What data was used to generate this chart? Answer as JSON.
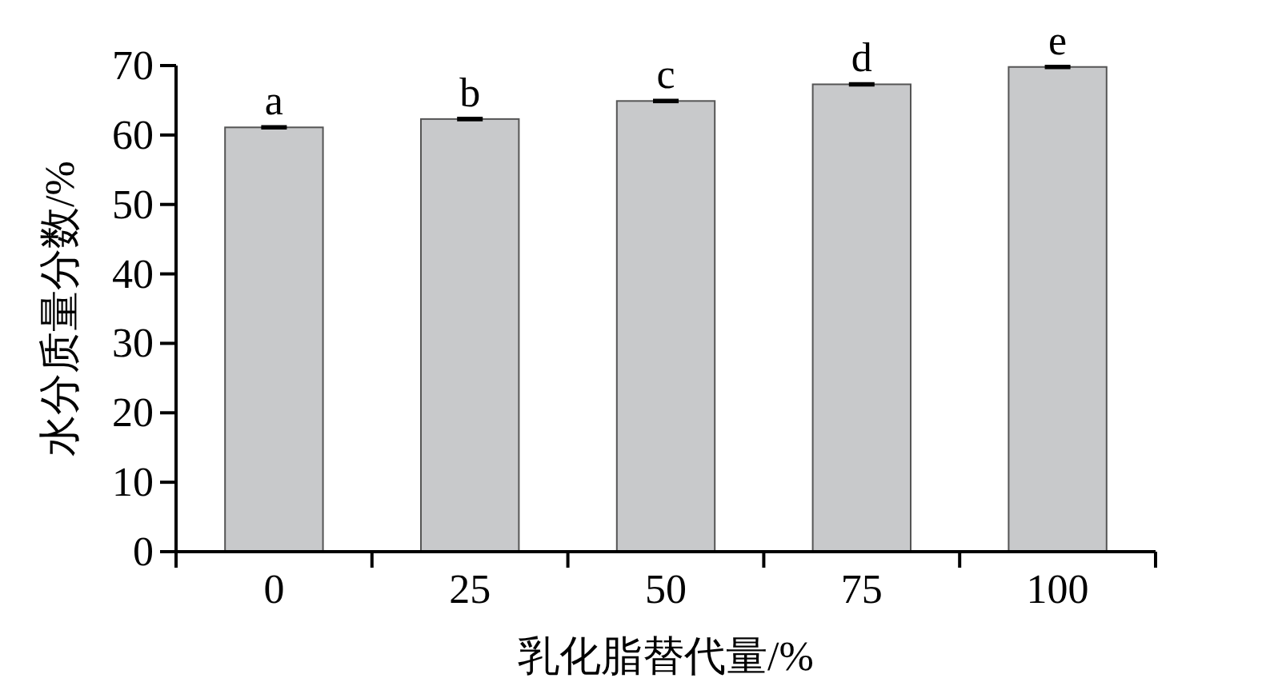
{
  "chart_data": {
    "type": "bar",
    "xlabel": "乳化脂替代量/%",
    "ylabel": "水分质量分数/%",
    "categories": [
      "0",
      "25",
      "50",
      "75",
      "100"
    ],
    "values": [
      61.1,
      62.3,
      64.9,
      67.3,
      69.8
    ],
    "errors": [
      0.15,
      0.15,
      0.15,
      0.15,
      0.15
    ],
    "color": "#c8c9cb",
    "ylim": [
      0,
      70
    ],
    "yticks": [
      0,
      10,
      20,
      30,
      40,
      50,
      60,
      70
    ],
    "grid": false,
    "annotations": [
      {
        "text": "a",
        "x": "0",
        "y": 61.1
      },
      {
        "text": "b",
        "x": "25",
        "y": 62.3
      },
      {
        "text": "c",
        "x": "50",
        "y": 64.9
      },
      {
        "text": "d",
        "x": "75",
        "y": 67.3
      },
      {
        "text": "e",
        "x": "100",
        "y": 69.8
      }
    ]
  }
}
